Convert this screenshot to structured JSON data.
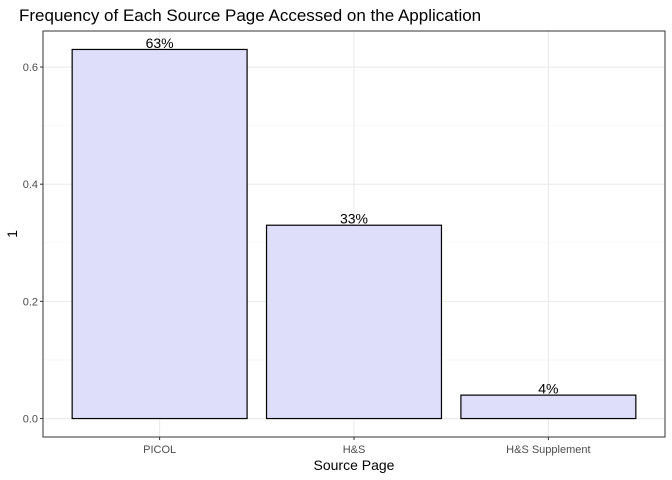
{
  "chart_data": {
    "type": "bar",
    "title": "Frequency of Each Source Page Accessed on the Application",
    "xlabel": "Source Page",
    "ylabel": "1",
    "categories": [
      "PICOL",
      "H&S",
      "H&S Supplement"
    ],
    "values": [
      0.63,
      0.33,
      0.04
    ],
    "data_labels": [
      "63%",
      "33%",
      "4%"
    ],
    "ylim": [
      -0.0315,
      0.6615
    ],
    "yticks": [
      0.0,
      0.2,
      0.4,
      0.6
    ],
    "ytick_labels": [
      "0.0",
      "0.2",
      "0.4",
      "0.6"
    ],
    "grid": true,
    "legend": "none",
    "bar_fill": "#dedefb",
    "bar_stroke": "#000000",
    "grid_major_color": "#ebebeb",
    "grid_minor_color": "#f5f5f5",
    "panel_border_color": "#333333"
  }
}
